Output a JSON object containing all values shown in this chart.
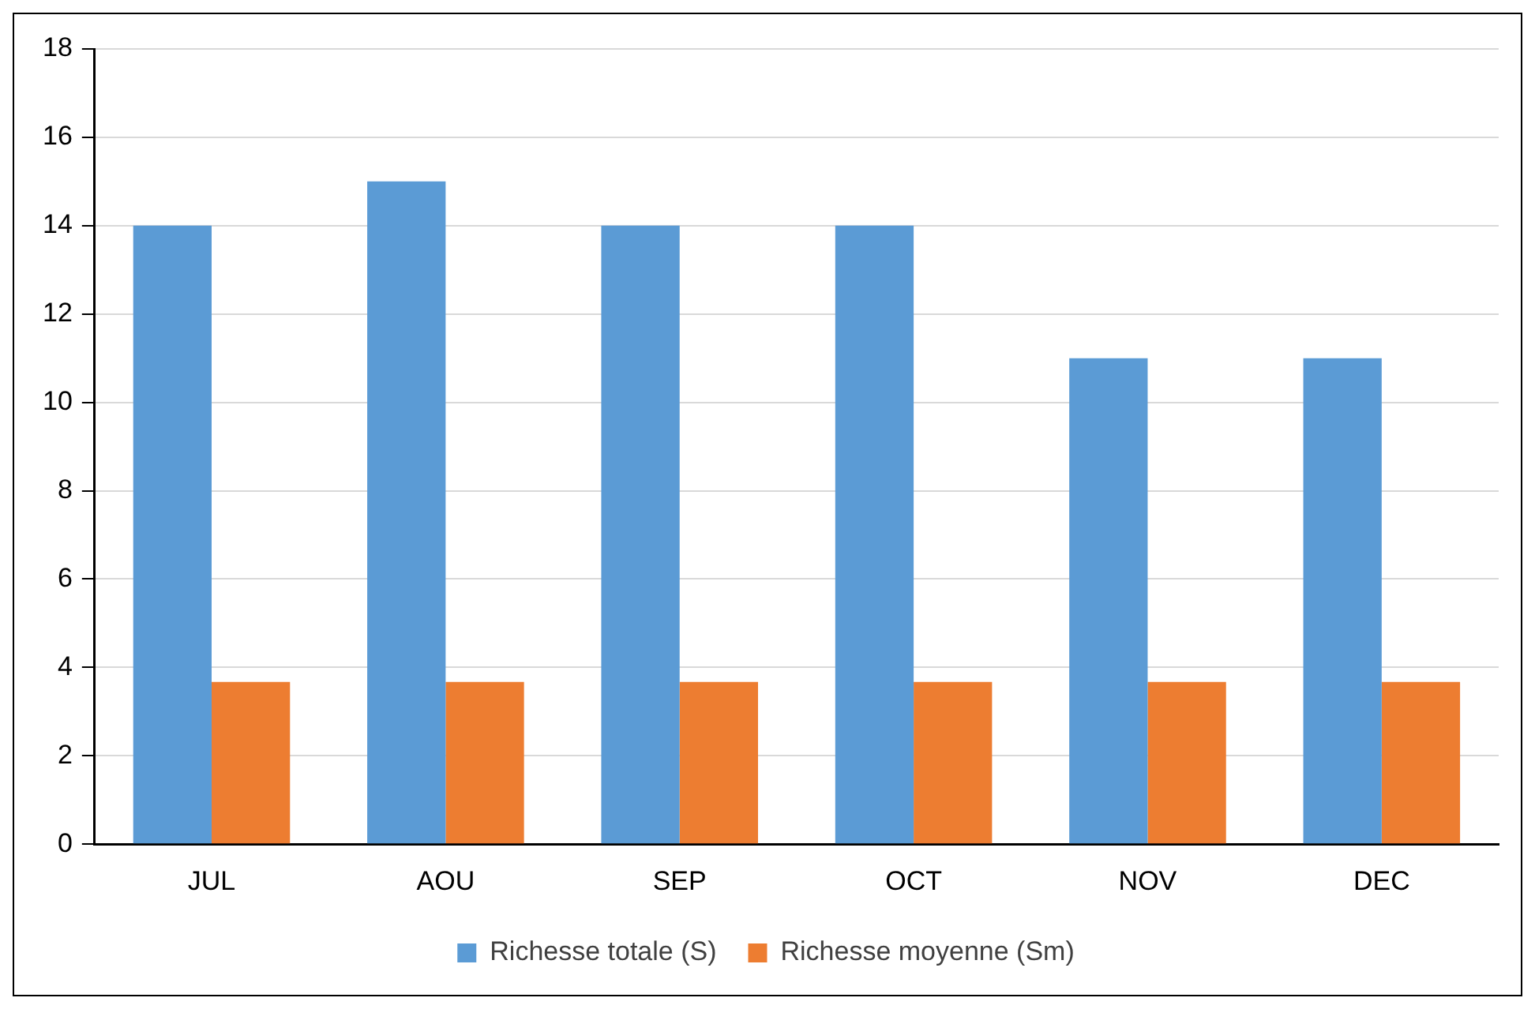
{
  "chart_data": {
    "type": "bar",
    "categories": [
      "JUL",
      "AOU",
      "SEP",
      "OCT",
      "NOV",
      "DEC"
    ],
    "series": [
      {
        "name": "Richesse totale (S)",
        "color": "#5b9bd5",
        "values": [
          14,
          15,
          14,
          14,
          11,
          11
        ]
      },
      {
        "name": "Richesse moyenne (Sm)",
        "color": "#ed7d31",
        "values": [
          3.67,
          3.67,
          3.67,
          3.67,
          3.67,
          3.67
        ]
      }
    ],
    "ylim": [
      0,
      18
    ],
    "yticks": [
      0,
      2,
      4,
      6,
      8,
      10,
      12,
      14,
      16,
      18
    ],
    "grid": "y",
    "legend": "bottom"
  }
}
